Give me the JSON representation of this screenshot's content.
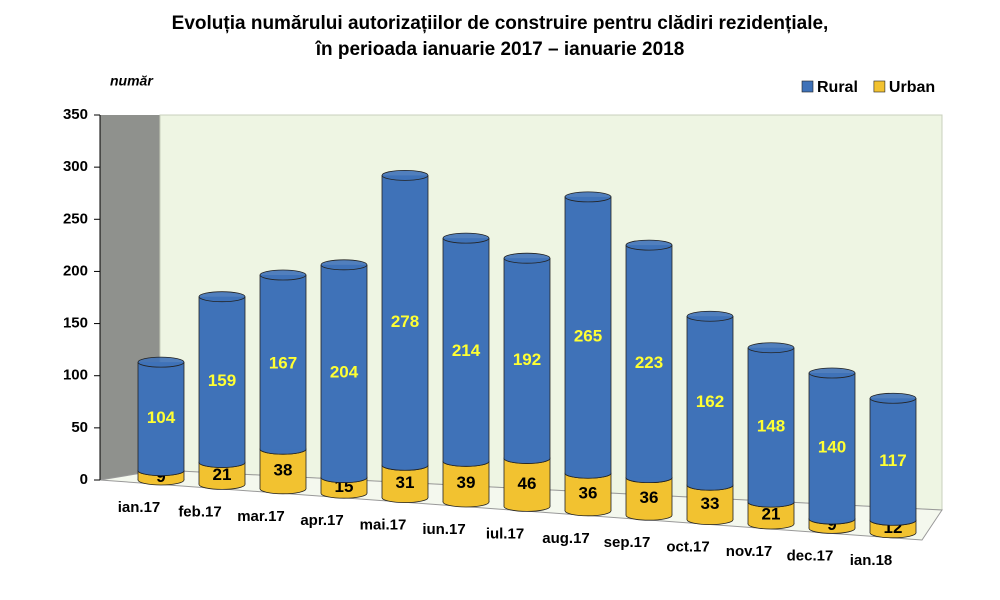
{
  "chart_data": {
    "type": "stacked-bar",
    "title": [
      "Evoluția numărului autorizațiilor de construire pentru clădiri rezidențiale,",
      "în perioada ianuarie 2017 – ianuarie 2018"
    ],
    "y_label": "număr",
    "categories": [
      "ian.17",
      "feb.17",
      "mar.17",
      "apr.17",
      "mai.17",
      "iun.17",
      "iul.17",
      "aug.17",
      "sep.17",
      "oct.17",
      "nov.17",
      "dec.17",
      "ian.18"
    ],
    "series": [
      {
        "name": "Urban",
        "color": "#f2c230",
        "label_color": "#000000",
        "values": [
          9,
          21,
          38,
          15,
          31,
          39,
          46,
          36,
          36,
          33,
          21,
          9,
          12
        ]
      },
      {
        "name": "Rural",
        "color": "#3f72b8",
        "label_color": "#ffff33",
        "values": [
          104,
          159,
          167,
          204,
          278,
          214,
          192,
          265,
          223,
          162,
          148,
          140,
          117
        ]
      }
    ],
    "legend_order": [
      1,
      0
    ],
    "legend_position": "top-right",
    "ylim": [
      0,
      350
    ],
    "yticks": [
      0,
      50,
      100,
      150,
      200,
      250,
      300,
      350
    ],
    "grid": false
  }
}
